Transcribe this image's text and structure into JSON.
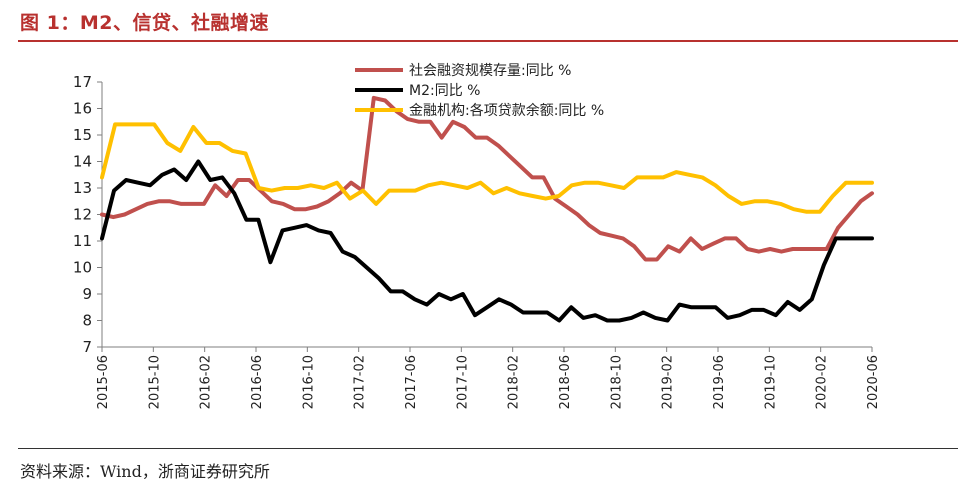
{
  "header": {
    "title": "图 1：M2、信贷、社融增速"
  },
  "footer": {
    "source": "资料来源：Wind，浙商证券研究所"
  },
  "chart_data": {
    "type": "line",
    "title": "图 1：M2、信贷、社融增速",
    "xlabel": "",
    "ylabel": "",
    "ylim": [
      7,
      17
    ],
    "yticks": [
      "7",
      "8",
      "9",
      "10",
      "11",
      "12",
      "13",
      "14",
      "15",
      "16",
      "17"
    ],
    "xlim": [
      "2015-06",
      "2020-06"
    ],
    "xticks": [
      "2015-06",
      "2015-10",
      "2016-02",
      "2016-06",
      "2016-10",
      "2017-02",
      "2017-06",
      "2017-10",
      "2018-02",
      "2018-06",
      "2018-10",
      "2019-02",
      "2019-06",
      "2019-10",
      "2020-02",
      "2020-06"
    ],
    "legend_position": "top",
    "series": [
      {
        "name": "社会融资规模存量:同比 %",
        "color": "#c0504d",
        "values": [
          12.0,
          11.9,
          12.0,
          12.2,
          12.4,
          12.5,
          12.5,
          12.4,
          12.4,
          12.4,
          13.1,
          12.7,
          13.3,
          13.3,
          12.9,
          12.5,
          12.4,
          12.2,
          12.2,
          12.3,
          12.5,
          12.8,
          13.2,
          12.9,
          16.4,
          16.3,
          15.9,
          15.6,
          15.5,
          15.5,
          14.9,
          15.5,
          15.3,
          14.9,
          14.9,
          14.6,
          14.2,
          13.8,
          13.4,
          13.4,
          12.6,
          12.3,
          12.0,
          11.6,
          11.3,
          11.2,
          11.1,
          10.8,
          10.3,
          10.3,
          10.8,
          10.6,
          11.1,
          10.7,
          10.9,
          11.1,
          11.1,
          10.7,
          10.6,
          10.7,
          10.6,
          10.7,
          10.7,
          10.7,
          10.7,
          11.5,
          12.0,
          12.5,
          12.8
        ]
      },
      {
        "name": "M2:同比 %",
        "color": "#000000",
        "values": [
          11.1,
          12.9,
          13.3,
          13.2,
          13.1,
          13.5,
          13.7,
          13.3,
          14.0,
          13.3,
          13.4,
          12.8,
          11.8,
          11.8,
          10.2,
          11.4,
          11.5,
          11.6,
          11.4,
          11.3,
          10.6,
          10.4,
          10.0,
          9.6,
          9.1,
          9.1,
          8.8,
          8.6,
          9.0,
          8.8,
          9.0,
          8.2,
          8.5,
          8.8,
          8.6,
          8.3,
          8.3,
          8.3,
          8.0,
          8.5,
          8.1,
          8.2,
          8.0,
          8.0,
          8.1,
          8.3,
          8.1,
          8.0,
          8.6,
          8.5,
          8.5,
          8.5,
          8.1,
          8.2,
          8.4,
          8.4,
          8.2,
          8.7,
          8.4,
          8.8,
          10.1,
          11.1,
          11.1,
          11.1,
          11.1
        ]
      },
      {
        "name": "金融机构:各项贷款余额:同比 %",
        "color": "#ffc000",
        "values": [
          13.4,
          15.4,
          15.4,
          15.4,
          15.4,
          14.7,
          14.4,
          15.3,
          14.7,
          14.7,
          14.4,
          14.3,
          13.0,
          12.9,
          13.0,
          13.0,
          13.1,
          13.0,
          13.2,
          12.6,
          12.9,
          12.4,
          12.9,
          12.9,
          12.9,
          13.1,
          13.2,
          13.1,
          13.0,
          13.2,
          12.8,
          13.0,
          12.8,
          12.7,
          12.6,
          12.7,
          13.1,
          13.2,
          13.2,
          13.1,
          13.0,
          13.4,
          13.4,
          13.4,
          13.6,
          13.5,
          13.4,
          13.1,
          12.7,
          12.4,
          12.5,
          12.5,
          12.4,
          12.2,
          12.1,
          12.1,
          12.7,
          13.2,
          13.2,
          13.2
        ]
      }
    ]
  }
}
